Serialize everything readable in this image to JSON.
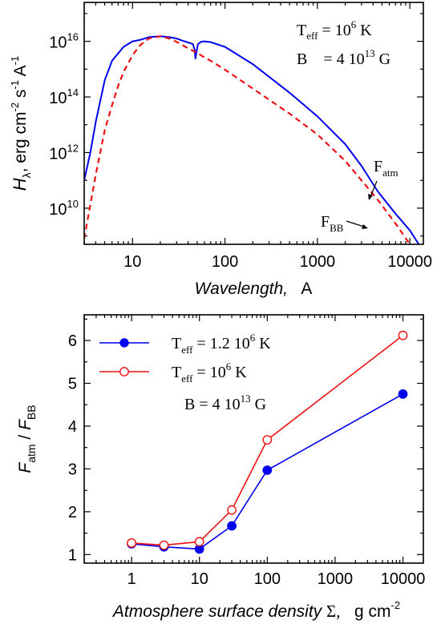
{
  "chart_data": [
    {
      "type": "line",
      "ylabel": {
        "main": "H",
        "sub": "λ",
        "units": "erg cm",
        "e1": "-2",
        "s": " s",
        "e2": "-1",
        "a": " A",
        "e3": "-1"
      },
      "xlabel": {
        "main": "Wavelength,",
        "units": "A"
      },
      "xscale": "log",
      "yscale": "log",
      "xlim": [
        3,
        14000
      ],
      "ylim_exp": [
        8.7,
        17.4
      ],
      "x_ticks": [
        10,
        100,
        1000,
        10000
      ],
      "x_tick_labels": [
        "10",
        "100",
        "1000",
        "10000"
      ],
      "y_ticks_exp": [
        10,
        12,
        14,
        16
      ],
      "annotation_lines": [
        {
          "key": "T_eff",
          "sub": "eff",
          "lhs": "T",
          "eq": " = 10",
          "exp": "6",
          "unit": " K"
        },
        {
          "key": "B",
          "lhs": "B",
          "eq": "    = 4 10",
          "exp": "13",
          "unit": " G"
        }
      ],
      "series": [
        {
          "label": {
            "main": "F",
            "sub": "atm"
          },
          "color": "#0000ee",
          "dash": "solid",
          "points_exp": [
            [
              3,
              11.0
            ],
            [
              3.5,
              12.0
            ],
            [
              4,
              13.1
            ],
            [
              5,
              14.6
            ],
            [
              6,
              15.3
            ],
            [
              8,
              15.8
            ],
            [
              10,
              16.0
            ],
            [
              12,
              16.05
            ],
            [
              15,
              16.15
            ],
            [
              20,
              16.18
            ],
            [
              25,
              16.15
            ],
            [
              30,
              16.1
            ],
            [
              35,
              16.02
            ],
            [
              40,
              15.96
            ],
            [
              45,
              15.9
            ],
            [
              47,
              15.7
            ],
            [
              48,
              15.38
            ],
            [
              49,
              15.6
            ],
            [
              51,
              15.9
            ],
            [
              55,
              15.98
            ],
            [
              60,
              16.0
            ],
            [
              70,
              15.97
            ],
            [
              100,
              15.8
            ],
            [
              200,
              15.18
            ],
            [
              500,
              14.15
            ],
            [
              1000,
              13.3
            ],
            [
              2000,
              12.3
            ],
            [
              3000,
              11.52
            ],
            [
              4500,
              10.6
            ],
            [
              7000,
              9.8
            ],
            [
              10000,
              9.2
            ],
            [
              12500,
              8.7
            ]
          ]
        },
        {
          "label": {
            "main": "F",
            "sub": "BB"
          },
          "color": "#ee1111",
          "dash": "dashed",
          "points_exp": [
            [
              3,
              8.9
            ],
            [
              4,
              11.2
            ],
            [
              5,
              12.8
            ],
            [
              6,
              13.7
            ],
            [
              7,
              14.4
            ],
            [
              8,
              14.9
            ],
            [
              10,
              15.5
            ],
            [
              12,
              15.85
            ],
            [
              15,
              16.1
            ],
            [
              20,
              16.18
            ],
            [
              25,
              16.1
            ],
            [
              30,
              15.98
            ],
            [
              40,
              15.75
            ],
            [
              50,
              15.58
            ],
            [
              60,
              15.42
            ],
            [
              70,
              15.3
            ],
            [
              100,
              14.98
            ],
            [
              200,
              14.3
            ],
            [
              500,
              13.4
            ],
            [
              1000,
              12.65
            ],
            [
              2000,
              11.7
            ],
            [
              3000,
              11.0
            ],
            [
              4500,
              10.3
            ],
            [
              7000,
              9.45
            ],
            [
              10000,
              8.7
            ]
          ]
        }
      ]
    },
    {
      "type": "line",
      "ylabel": {
        "m1": "F",
        "s1": "atm",
        "slash": " / ",
        "m2": "F",
        "s2": "BB"
      },
      "xlabel": {
        "main": "Atmosphere surface density",
        "sym": "Σ,",
        "units": "g cm",
        "exp": "-2"
      },
      "xscale": "log",
      "xlim": [
        0.2,
        20000
      ],
      "ylim": [
        0.8,
        6.6
      ],
      "x_ticks": [
        1,
        10,
        100,
        1000,
        10000
      ],
      "x_tick_labels": [
        "1",
        "10",
        "100",
        "1000",
        "10000"
      ],
      "y_ticks": [
        1,
        2,
        3,
        4,
        5,
        6
      ],
      "y_tick_labels": [
        "1",
        "2",
        "3",
        "4",
        "5",
        "6"
      ],
      "legend_position": "top-left",
      "note": {
        "lhs": "B = 4 10",
        "exp": "13",
        "unit": " G"
      },
      "series": [
        {
          "label": {
            "lhs": "T",
            "sub": "eff",
            "eq": " = 1.2 10",
            "exp": "6",
            "unit": " K"
          },
          "color": "#0000ee",
          "marker": "filled-circle",
          "x": [
            1,
            3,
            10,
            30,
            100,
            10000
          ],
          "y": [
            1.25,
            1.18,
            1.13,
            1.67,
            2.97,
            4.75
          ]
        },
        {
          "label": {
            "lhs": "T",
            "sub": "eff",
            "eq": " = 10",
            "exp": "6",
            "unit": " K"
          },
          "color": "#ee1111",
          "marker": "open-circle",
          "x": [
            1,
            3,
            10,
            30,
            100,
            10000
          ],
          "y": [
            1.27,
            1.22,
            1.3,
            2.04,
            3.68,
            6.12
          ]
        }
      ]
    }
  ]
}
